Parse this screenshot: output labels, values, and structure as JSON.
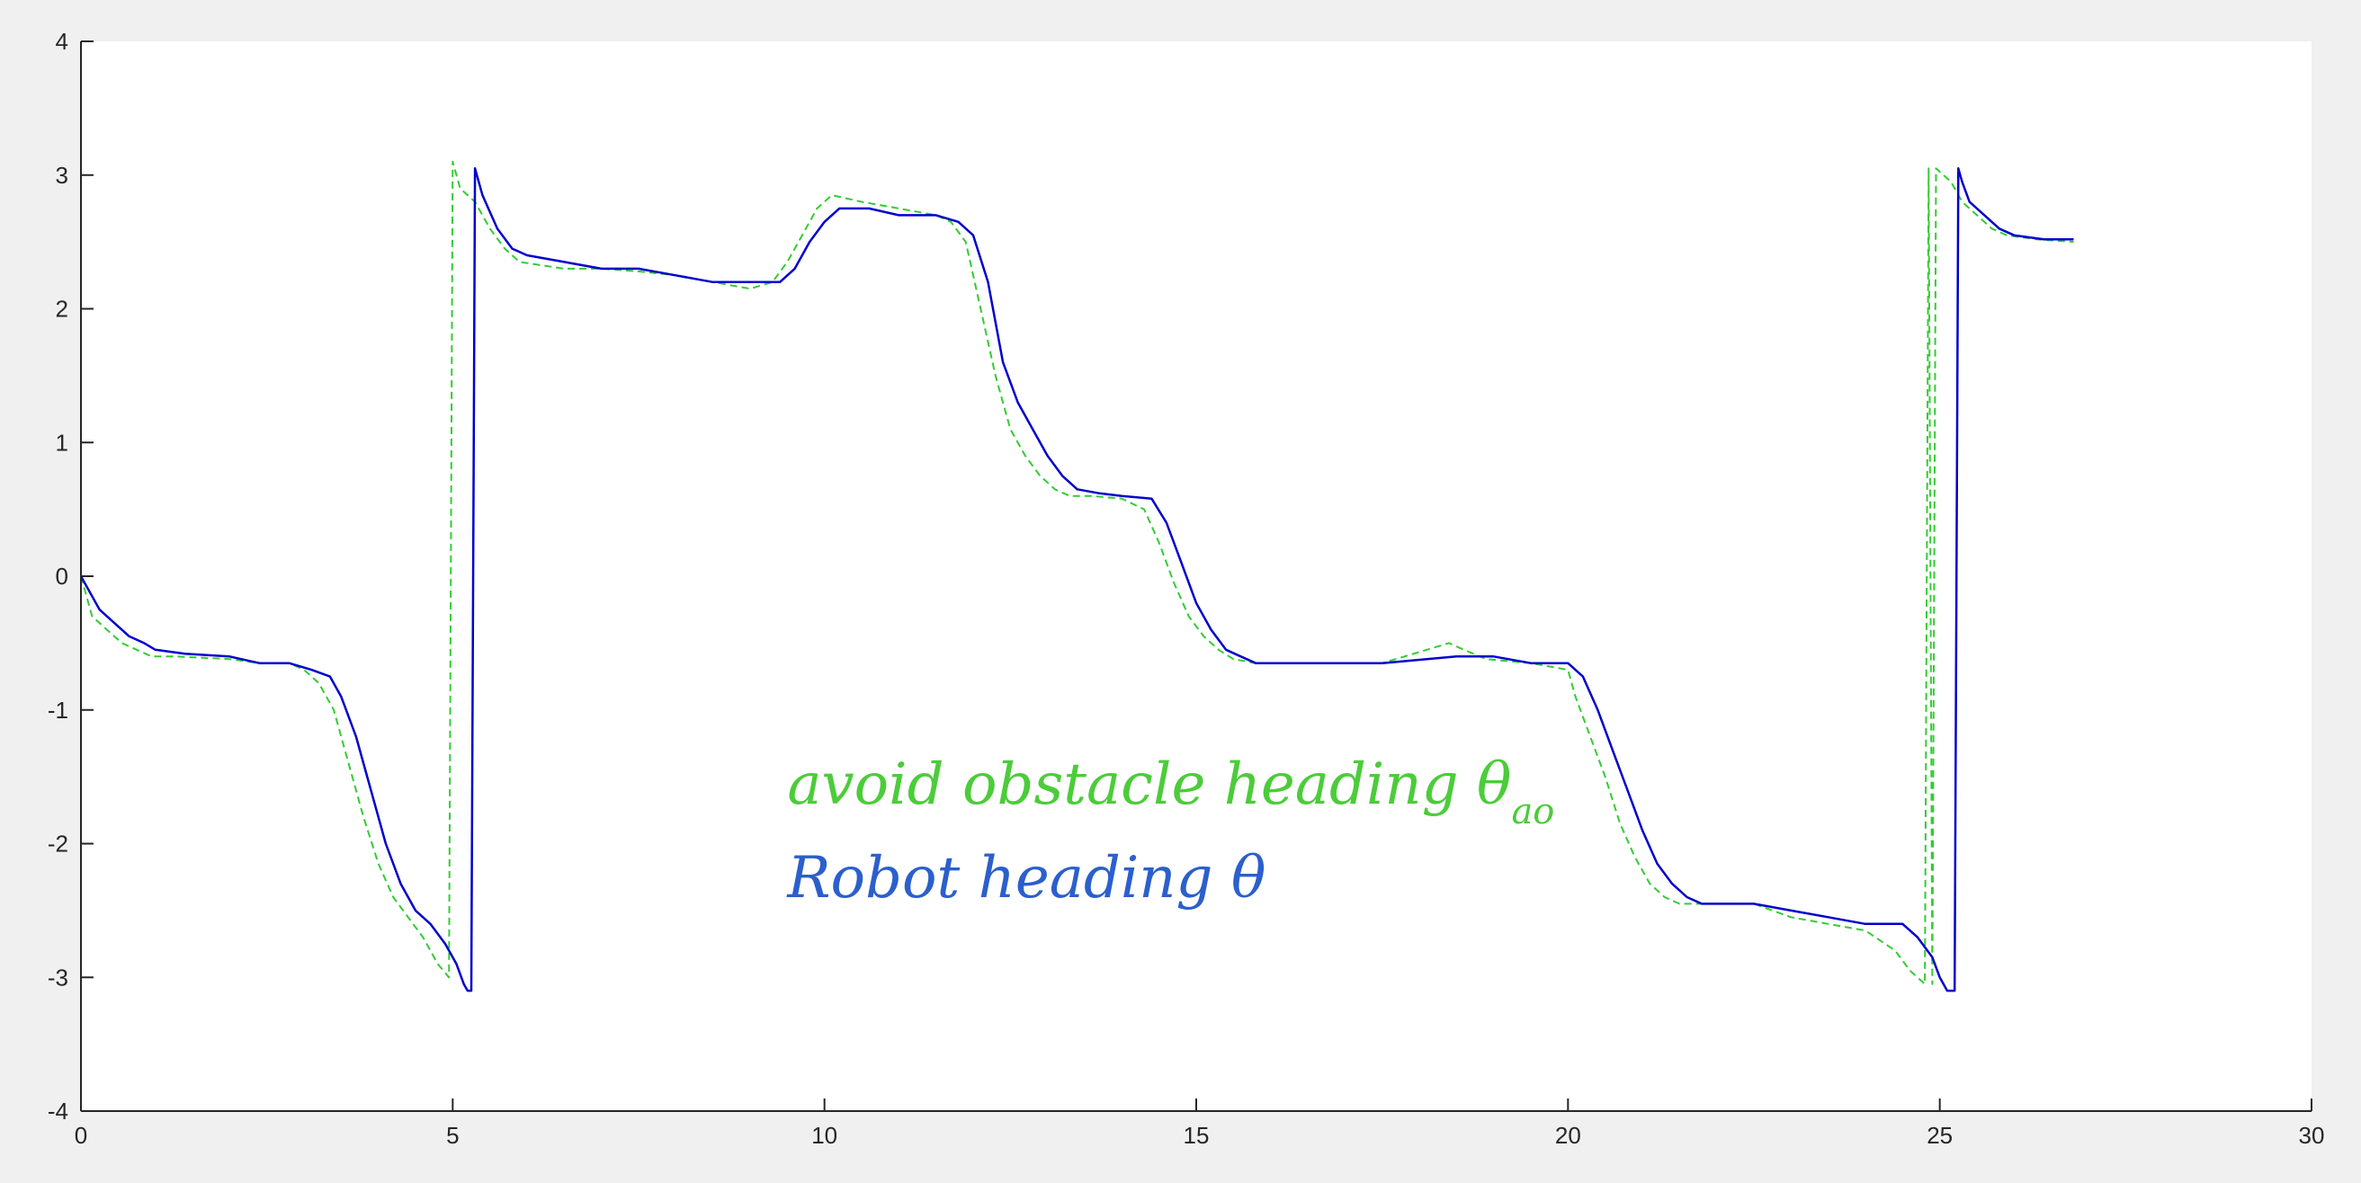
{
  "chart_data": {
    "type": "line",
    "xlim": [
      0,
      30
    ],
    "ylim": [
      -4,
      4
    ],
    "x_ticks": [
      0,
      5,
      10,
      15,
      20,
      25,
      30
    ],
    "y_ticks": [
      -4,
      -3,
      -2,
      -1,
      0,
      1,
      2,
      3,
      4
    ],
    "grid": false,
    "series": [
      {
        "color": "#0000cd",
        "style": "solid",
        "x": [
          0,
          0.25,
          0.45,
          0.65,
          0.85,
          1.0,
          1.4,
          2.0,
          2.4,
          2.8,
          3.1,
          3.35,
          3.5,
          3.7,
          3.9,
          4.1,
          4.3,
          4.5,
          4.7,
          4.9,
          5.05,
          5.15,
          5.2,
          5.25,
          5.3,
          5.4,
          5.6,
          5.8,
          6.0,
          6.5,
          7.0,
          7.5,
          8.0,
          8.5,
          9.0,
          9.4,
          9.6,
          9.8,
          10.0,
          10.2,
          10.6,
          11.0,
          11.5,
          11.8,
          12.0,
          12.2,
          12.4,
          12.6,
          12.8,
          13.0,
          13.2,
          13.4,
          13.7,
          14.0,
          14.4,
          14.6,
          14.8,
          15.0,
          15.2,
          15.4,
          15.6,
          15.8,
          16.5,
          17.5,
          18.5,
          19.0,
          19.5,
          20.0,
          20.2,
          20.4,
          20.6,
          20.8,
          21.0,
          21.2,
          21.4,
          21.6,
          21.8,
          22.5,
          23.0,
          23.5,
          24.0,
          24.5,
          24.7,
          24.9,
          25.0,
          25.1,
          25.2,
          25.25,
          25.3,
          25.4,
          25.6,
          25.8,
          26.0,
          26.4,
          26.8
        ],
        "y": [
          0.0,
          -0.25,
          -0.35,
          -0.45,
          -0.5,
          -0.55,
          -0.58,
          -0.6,
          -0.65,
          -0.65,
          -0.7,
          -0.75,
          -0.9,
          -1.2,
          -1.6,
          -2.0,
          -2.3,
          -2.5,
          -2.6,
          -2.75,
          -2.9,
          -3.05,
          -3.1,
          -3.1,
          3.05,
          2.85,
          2.6,
          2.45,
          2.4,
          2.35,
          2.3,
          2.3,
          2.25,
          2.2,
          2.2,
          2.2,
          2.3,
          2.5,
          2.65,
          2.75,
          2.75,
          2.7,
          2.7,
          2.65,
          2.55,
          2.2,
          1.6,
          1.3,
          1.1,
          0.9,
          0.75,
          0.65,
          0.62,
          0.6,
          0.58,
          0.4,
          0.1,
          -0.2,
          -0.4,
          -0.55,
          -0.6,
          -0.65,
          -0.65,
          -0.65,
          -0.6,
          -0.6,
          -0.65,
          -0.65,
          -0.75,
          -1.0,
          -1.3,
          -1.6,
          -1.9,
          -2.15,
          -2.3,
          -2.4,
          -2.45,
          -2.45,
          -2.5,
          -2.55,
          -2.6,
          -2.6,
          -2.7,
          -2.85,
          -3.0,
          -3.1,
          -3.1,
          3.05,
          2.95,
          2.8,
          2.7,
          2.6,
          2.55,
          2.52,
          2.52
        ]
      },
      {
        "color": "#33cc33",
        "style": "dashed",
        "x": [
          0,
          0.15,
          0.35,
          0.55,
          0.75,
          0.95,
          1.3,
          2.0,
          2.4,
          2.8,
          3.0,
          3.2,
          3.4,
          3.6,
          3.8,
          4.0,
          4.2,
          4.4,
          4.6,
          4.8,
          4.95,
          5.0,
          5.05,
          5.1,
          5.3,
          5.5,
          5.7,
          5.9,
          6.5,
          7.0,
          7.5,
          8.0,
          8.5,
          9.0,
          9.3,
          9.5,
          9.7,
          9.9,
          10.1,
          10.5,
          11.0,
          11.5,
          11.7,
          11.9,
          12.1,
          12.3,
          12.5,
          12.7,
          12.9,
          13.1,
          13.3,
          13.6,
          14.0,
          14.3,
          14.5,
          14.7,
          14.9,
          15.1,
          15.3,
          15.5,
          15.8,
          16.5,
          17.5,
          18.4,
          18.6,
          18.9,
          19.5,
          20.0,
          20.1,
          20.3,
          20.5,
          20.7,
          20.9,
          21.1,
          21.3,
          21.5,
          21.8,
          22.5,
          23.0,
          23.5,
          24.0,
          24.4,
          24.6,
          24.8,
          24.85,
          24.9,
          24.95,
          25.05,
          25.15,
          25.3,
          25.5,
          25.7,
          25.9,
          26.3,
          26.8
        ],
        "y": [
          0.0,
          -0.3,
          -0.4,
          -0.5,
          -0.55,
          -0.6,
          -0.6,
          -0.62,
          -0.65,
          -0.65,
          -0.7,
          -0.8,
          -1.0,
          -1.4,
          -1.8,
          -2.15,
          -2.4,
          -2.55,
          -2.7,
          -2.9,
          -3.0,
          3.1,
          3.0,
          2.9,
          2.8,
          2.6,
          2.45,
          2.35,
          2.3,
          2.3,
          2.28,
          2.25,
          2.2,
          2.15,
          2.2,
          2.35,
          2.55,
          2.75,
          2.85,
          2.8,
          2.75,
          2.7,
          2.65,
          2.5,
          2.0,
          1.5,
          1.1,
          0.9,
          0.75,
          0.65,
          0.6,
          0.6,
          0.58,
          0.5,
          0.25,
          -0.05,
          -0.3,
          -0.45,
          -0.55,
          -0.62,
          -0.65,
          -0.65,
          -0.65,
          -0.5,
          -0.55,
          -0.62,
          -0.65,
          -0.7,
          -0.9,
          -1.2,
          -1.5,
          -1.85,
          -2.1,
          -2.3,
          -2.4,
          -2.45,
          -2.45,
          -2.45,
          -2.55,
          -2.6,
          -2.65,
          -2.8,
          -2.95,
          -3.05,
          3.05,
          -3.05,
          3.05,
          3.0,
          2.95,
          2.8,
          2.7,
          2.6,
          2.55,
          2.52,
          2.5
        ]
      }
    ],
    "annotations": [
      {
        "text": "avoid obstacle heading θ",
        "subscript": "ao",
        "color": "#4ccc3a",
        "x": 9.5,
        "y": -1.7
      },
      {
        "text": "Robot heading θ",
        "color": "#2b5fcc",
        "x": 9.5,
        "y": -2.4
      }
    ]
  }
}
